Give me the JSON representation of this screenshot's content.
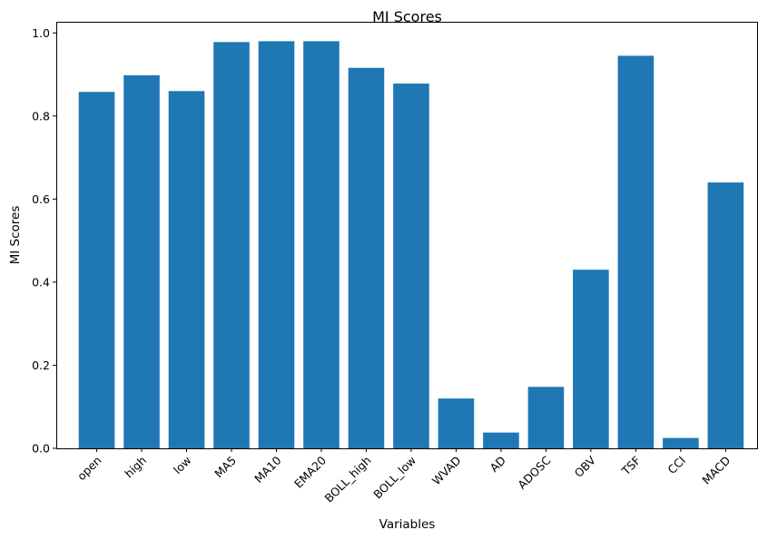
{
  "chart_data": {
    "type": "bar",
    "title": "MI Scores",
    "xlabel": "Variables",
    "ylabel": "MI Scores",
    "categories": [
      "open",
      "high",
      "low",
      "MA5",
      "MA10",
      "EMA20",
      "BOLL_high",
      "BOLL_low",
      "WVAD",
      "AD",
      "ADOSC",
      "OBV",
      "TSF",
      "CCI",
      "MACD"
    ],
    "values": [
      0.858,
      0.898,
      0.86,
      0.978,
      0.98,
      0.98,
      0.916,
      0.878,
      0.12,
      0.038,
      0.148,
      0.43,
      0.945,
      0.025,
      0.64
    ],
    "ylim": [
      0,
      1.0268
    ],
    "yticks": [
      0.0,
      0.2,
      0.4,
      0.6,
      0.8,
      1.0
    ],
    "ytick_labels": [
      "0.0",
      "0.2",
      "0.4",
      "0.6",
      "0.8",
      "1.0"
    ],
    "bar_color": "#1f77b4",
    "grid": false,
    "legend": false
  }
}
